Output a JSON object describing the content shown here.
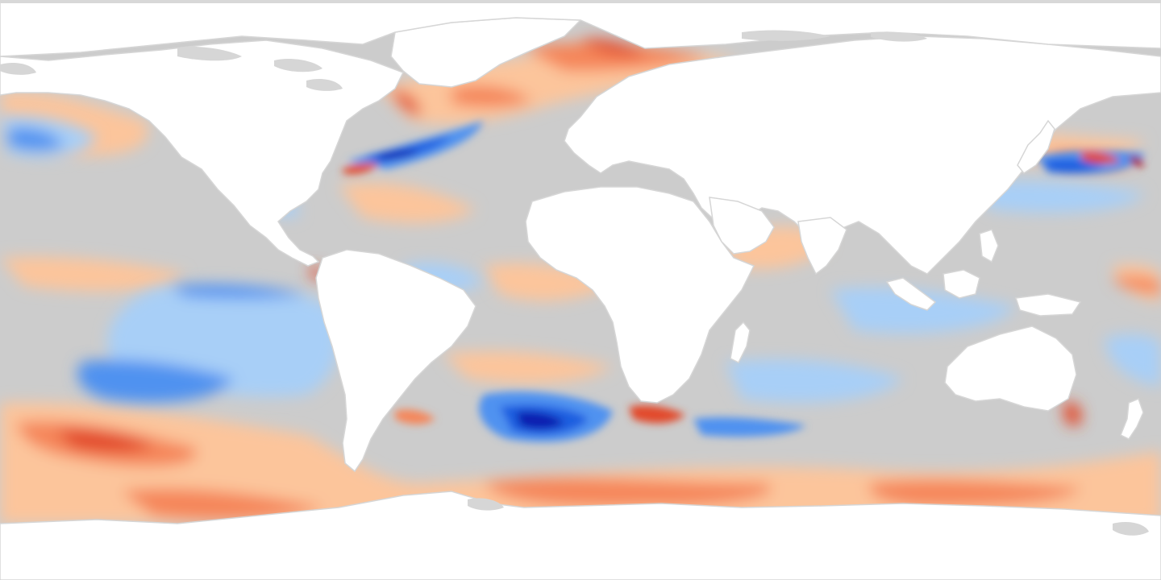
{
  "map": {
    "projection": "equirectangular",
    "variable_kind": "anomaly",
    "colors": {
      "ocean_neutral": "#cccccc",
      "land": "#ffffff",
      "ice_coast": "#d6d6d6",
      "top_border": "#d8d8d8",
      "warm_light": "#fcc59b",
      "warm_medium": "#f5865a",
      "warm_strong": "#e24a2c",
      "warm_extreme": "#a50f15",
      "cold_light": "#a8cff7",
      "cold_medium": "#4f92f0",
      "cold_strong": "#1f5fe0",
      "cold_extreme": "#0a1fb0"
    }
  }
}
